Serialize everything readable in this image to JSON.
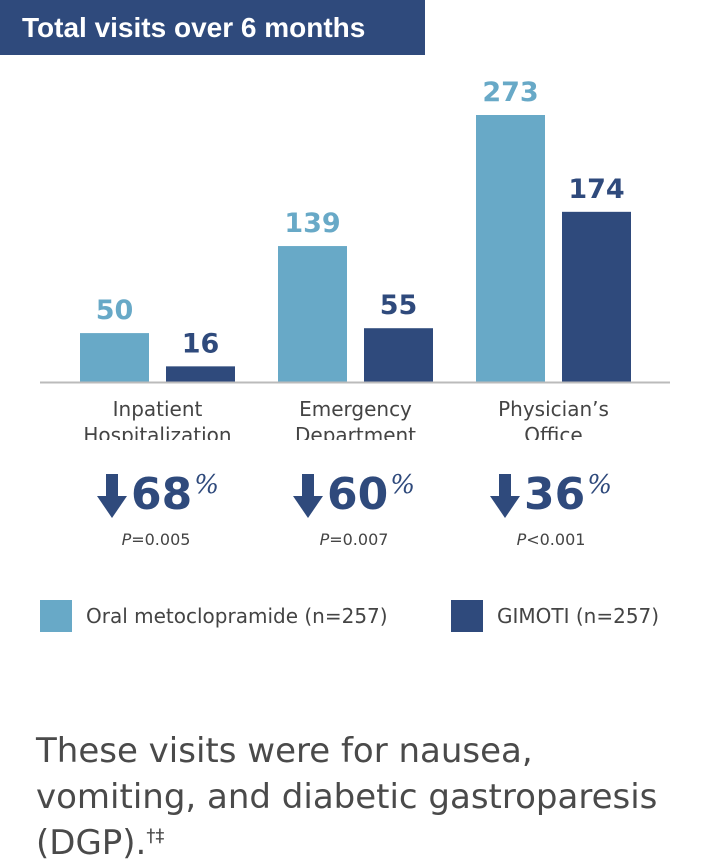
{
  "title": "Total visits over 6 months",
  "colors": {
    "oral": "#68a9c7",
    "gimoti": "#2f4a7c",
    "axis": "#bbbbbb",
    "title_bg": "#2f4a7c"
  },
  "chart_data": {
    "type": "bar",
    "title": "Total visits over 6 months",
    "categories": [
      [
        "Inpatient",
        "Hospitalization"
      ],
      [
        "Emergency",
        "Department"
      ],
      [
        "Physician’s",
        "Office"
      ]
    ],
    "series": [
      {
        "name": "Oral metoclopramide (n=257)",
        "color": "#68a9c7",
        "values": [
          50,
          139,
          273
        ]
      },
      {
        "name": "GIMOTI (n=257)",
        "color": "#2f4a7c",
        "values": [
          16,
          55,
          174
        ]
      }
    ],
    "data_labels": [
      [
        "50",
        "139",
        "273"
      ],
      [
        "16",
        "55",
        "174"
      ]
    ],
    "ylim": [
      0,
      273
    ],
    "grid": false,
    "legend": "bottom",
    "reductions": [
      {
        "value": "68",
        "unit": "%",
        "p_letter": "P",
        "p_rest": "=0.005"
      },
      {
        "value": "60",
        "unit": "%",
        "p_letter": "P",
        "p_rest": "=0.007"
      },
      {
        "value": "36",
        "unit": "%",
        "p_letter": "P",
        "p_rest": "<0.001"
      }
    ]
  },
  "legend": {
    "oral_label": "Oral metoclopramide (n=257)",
    "gimoti_label": "GIMOTI (n=257)"
  },
  "footnote": {
    "text": "These visits were for nausea, vomiting, and diabetic gastroparesis (DGP).",
    "marks": "†‡"
  }
}
